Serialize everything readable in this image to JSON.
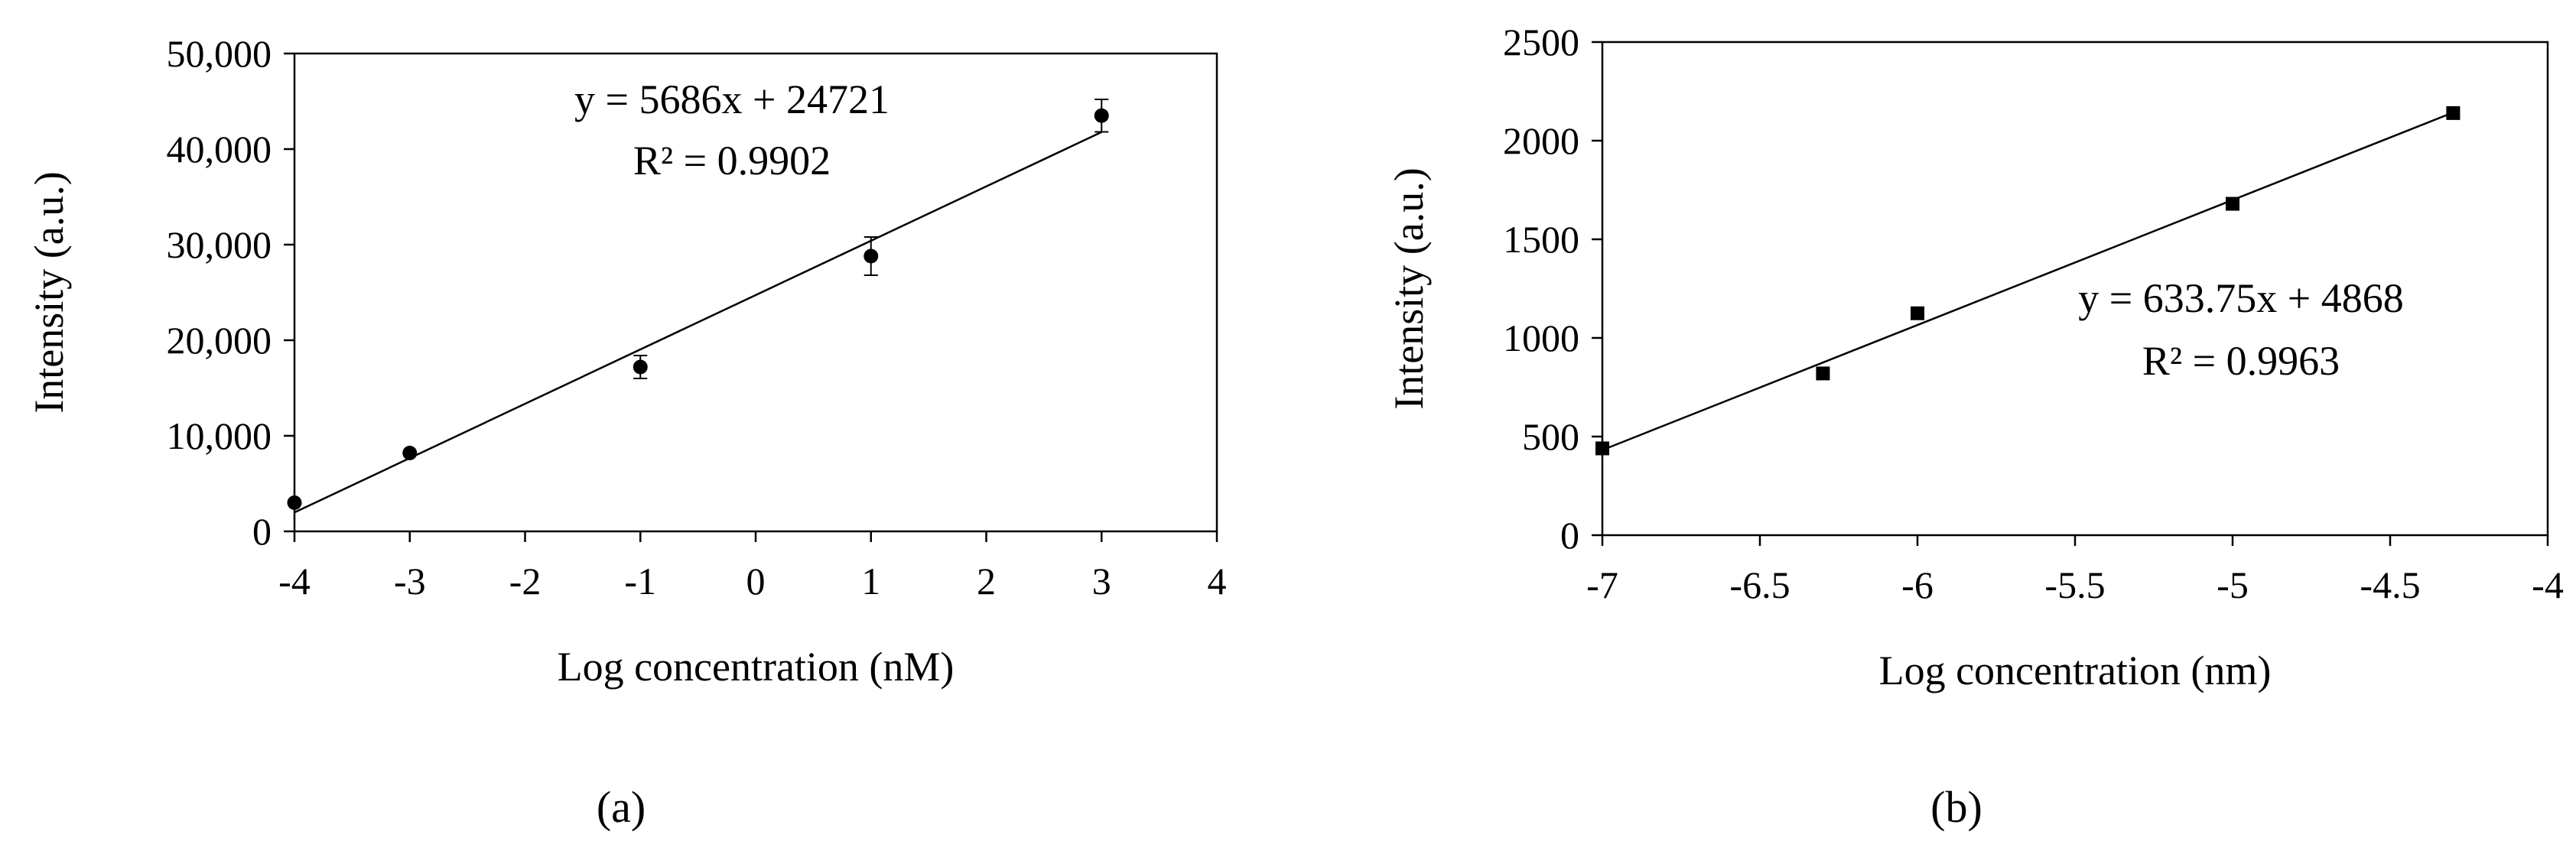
{
  "chart_data": [
    {
      "type": "scatter",
      "panel_label": "(a)",
      "xlabel": "Log concentration (nM)",
      "ylabel": "Intensity (a.u.)",
      "xlim": [
        -4,
        4
      ],
      "ylim": [
        0,
        50000
      ],
      "x_ticks": [
        -4,
        -3,
        -2,
        -1,
        0,
        1,
        2,
        3,
        4
      ],
      "y_ticks": [
        0,
        10000,
        20000,
        30000,
        40000,
        50000
      ],
      "x_tick_labels": [
        "-4",
        "-3",
        "-2",
        "-1",
        "0",
        "1",
        "2",
        "3",
        "4"
      ],
      "y_tick_labels": [
        "0",
        "10,000",
        "20,000",
        "30,000",
        "40,000",
        "50,000"
      ],
      "grid": false,
      "marker": "circle",
      "points": [
        {
          "x": -4,
          "y": 3000,
          "err": 0
        },
        {
          "x": -3,
          "y": 8200,
          "err": 0
        },
        {
          "x": -1,
          "y": 17200,
          "err": 1200
        },
        {
          "x": 1,
          "y": 28800,
          "err": 2000
        },
        {
          "x": 3,
          "y": 43500,
          "err": 1700
        }
      ],
      "fit": {
        "slope": 5686,
        "intercept": 24721,
        "x_range": [
          -4,
          3
        ]
      },
      "equation": "y = 5686x + 24721",
      "r2_label": "R² = 0.9902",
      "equation_placement": "top-center"
    },
    {
      "type": "scatter",
      "panel_label": "(b)",
      "xlabel": "Log concentration (nm)",
      "ylabel": "Intensity (a.u.)",
      "xlim": [
        -7,
        -4
      ],
      "ylim": [
        0,
        2500
      ],
      "x_ticks": [
        -7,
        -6.5,
        -6,
        -5.5,
        -5,
        -4.5,
        -4
      ],
      "y_ticks": [
        0,
        500,
        1000,
        1500,
        2000,
        2500
      ],
      "x_tick_labels": [
        "-7",
        "-6.5",
        "-6",
        "-5.5",
        "-5",
        "-4.5",
        "-4"
      ],
      "y_tick_labels": [
        "0",
        "500",
        "1000",
        "1500",
        "2000",
        "2500"
      ],
      "grid": false,
      "marker": "square",
      "points": [
        {
          "x": -7,
          "y": 440,
          "err": 0
        },
        {
          "x": -6.3,
          "y": 820,
          "err": 0
        },
        {
          "x": -6,
          "y": 1125,
          "err": 0
        },
        {
          "x": -5,
          "y": 1680,
          "err": 0
        },
        {
          "x": -4.3,
          "y": 2140,
          "err": 20
        }
      ],
      "fit": {
        "slope": 633.75,
        "intercept": 4868,
        "x_range": [
          -7,
          -4.3
        ]
      },
      "equation": "y = 633.75x + 4868",
      "r2_label": "R² = 0.9963",
      "equation_placement": "center-right"
    }
  ]
}
